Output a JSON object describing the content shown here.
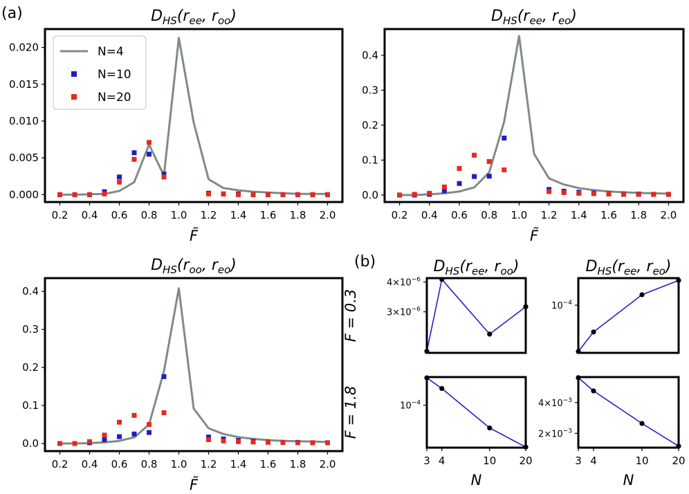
{
  "figure": {
    "panel_a_label": "(a)",
    "panel_b_label": "(b)"
  },
  "chart_data": [
    {
      "type": "line",
      "panel": "a1",
      "title": "D_HS(r_ee, r_oo)",
      "title_parts": {
        "main": "D",
        "sub": "HS",
        "args": "(r",
        "s1": "ee",
        "mid": ", r",
        "s2": "oo",
        "end": ")"
      },
      "xlabel": "F̃",
      "ylabel": "",
      "xlim": [
        0.1,
        2.1
      ],
      "ylim": [
        -0.001,
        0.0225
      ],
      "xticks": [
        0.2,
        0.4,
        0.6,
        0.8,
        1.0,
        1.2,
        1.4,
        1.6,
        1.8,
        2.0
      ],
      "xtick_labels": [
        "0.2",
        "0.4",
        "0.6",
        "0.8",
        "1.0",
        "1.2",
        "1.4",
        "1.6",
        "1.8",
        "2.0"
      ],
      "yticks": [
        0,
        0.005,
        0.01,
        0.015,
        0.02
      ],
      "ytick_labels": [
        "0.000",
        "0.005",
        "0.010",
        "0.015",
        "0.020"
      ],
      "legend": {
        "position": "top-left",
        "entries": [
          "N=4",
          "N=10",
          "N=20"
        ]
      },
      "series": [
        {
          "name": "N=4",
          "kind": "line",
          "color": "#808a87",
          "x": [
            0.2,
            0.3,
            0.4,
            0.5,
            0.6,
            0.7,
            0.8,
            0.9,
            1.0,
            1.1,
            1.2,
            1.3,
            1.4,
            1.5,
            1.6,
            1.7,
            1.8,
            1.9,
            2.0
          ],
          "y": [
            0,
            0,
            5e-05,
            0.0001,
            0.0005,
            0.0017,
            0.0068,
            0.0026,
            0.0213,
            0.0098,
            0.0021,
            0.0009,
            0.0006,
            0.0004,
            0.0003,
            0.0002,
            0.0001,
            0.0001,
            0.0001
          ]
        },
        {
          "name": "N=10",
          "kind": "scatter",
          "color": "#1f1fbf",
          "x": [
            0.2,
            0.3,
            0.4,
            0.5,
            0.6,
            0.7,
            0.8,
            0.9,
            1.2,
            1.3,
            1.4,
            1.5,
            1.6,
            1.7,
            1.8,
            1.9,
            2.0
          ],
          "y": [
            0,
            0,
            0,
            0.0004,
            0.0024,
            0.0057,
            0.0055,
            0.0028,
            0.0002,
            0.0001,
            0.0001,
            0,
            0,
            0,
            0,
            0,
            0
          ]
        },
        {
          "name": "N=20",
          "kind": "scatter",
          "color": "#e8281e",
          "x": [
            0.2,
            0.3,
            0.4,
            0.5,
            0.6,
            0.7,
            0.8,
            0.9,
            1.2,
            1.3,
            1.4,
            1.5,
            1.6,
            1.7,
            1.8,
            1.9,
            2.0
          ],
          "y": [
            0,
            0,
            0,
            0.0001,
            0.0017,
            0.0048,
            0.0071,
            0.0024,
            0.0001,
            0.0001,
            0,
            0,
            0,
            0,
            0,
            0,
            0
          ]
        }
      ]
    },
    {
      "type": "line",
      "panel": "a2",
      "title": "D_HS(r_ee, r_eo)",
      "title_parts": {
        "main": "D",
        "sub": "HS",
        "args": "(r",
        "s1": "ee",
        "mid": ", r",
        "s2": "eo",
        "end": ")"
      },
      "xlabel": "F̃",
      "ylabel": "",
      "xlim": [
        0.1,
        2.1
      ],
      "ylim": [
        -0.02,
        0.475
      ],
      "xticks": [
        0.2,
        0.4,
        0.6,
        0.8,
        1.0,
        1.2,
        1.4,
        1.6,
        1.8,
        2.0
      ],
      "xtick_labels": [
        "0.2",
        "0.4",
        "0.6",
        "0.8",
        "1.0",
        "1.2",
        "1.4",
        "1.6",
        "1.8",
        "2.0"
      ],
      "yticks": [
        0,
        0.1,
        0.2,
        0.3,
        0.4
      ],
      "ytick_labels": [
        "0.0",
        "0.1",
        "0.2",
        "0.3",
        "0.4"
      ],
      "series": [
        {
          "name": "N=4",
          "kind": "line",
          "color": "#808a87",
          "x": [
            0.2,
            0.3,
            0.4,
            0.5,
            0.6,
            0.7,
            0.8,
            0.9,
            1.0,
            1.1,
            1.2,
            1.3,
            1.4,
            1.5,
            1.6,
            1.7,
            1.8,
            1.9,
            2.0
          ],
          "y": [
            0,
            0,
            0.002,
            0.005,
            0.01,
            0.022,
            0.065,
            0.21,
            0.455,
            0.118,
            0.048,
            0.03,
            0.02,
            0.014,
            0.01,
            0.008,
            0.006,
            0.005,
            0.004
          ]
        },
        {
          "name": "N=10",
          "kind": "scatter",
          "color": "#1f1fbf",
          "x": [
            0.2,
            0.3,
            0.4,
            0.5,
            0.6,
            0.7,
            0.8,
            0.9,
            1.2,
            1.3,
            1.4,
            1.5,
            1.6,
            1.7,
            1.8,
            1.9,
            2.0
          ],
          "y": [
            0,
            0,
            0.002,
            0.012,
            0.033,
            0.053,
            0.054,
            0.163,
            0.016,
            0.011,
            0.008,
            0.006,
            0.004,
            0.003,
            0.003,
            0.002,
            0.002
          ]
        },
        {
          "name": "N=20",
          "kind": "scatter",
          "color": "#e8281e",
          "x": [
            0.2,
            0.3,
            0.4,
            0.5,
            0.6,
            0.7,
            0.8,
            0.9,
            1.2,
            1.3,
            1.4,
            1.5,
            1.6,
            1.7,
            1.8,
            1.9,
            2.0
          ],
          "y": [
            0,
            0.002,
            0.005,
            0.023,
            0.076,
            0.114,
            0.096,
            0.072,
            0.01,
            0.007,
            0.005,
            0.004,
            0.003,
            0.002,
            0.002,
            0.002,
            0.002
          ]
        }
      ]
    },
    {
      "type": "line",
      "panel": "a3",
      "title": "D_HS(r_oo, r_eo)",
      "title_parts": {
        "main": "D",
        "sub": "HS",
        "args": "(r",
        "s1": "oo",
        "mid": ", r",
        "s2": "eo",
        "end": ")"
      },
      "xlabel": "F̃",
      "ylabel": "",
      "xlim": [
        0.1,
        2.1
      ],
      "ylim": [
        -0.02,
        0.435
      ],
      "xticks": [
        0.2,
        0.4,
        0.6,
        0.8,
        1.0,
        1.2,
        1.4,
        1.6,
        1.8,
        2.0
      ],
      "xtick_labels": [
        "0.2",
        "0.4",
        "0.6",
        "0.8",
        "1.0",
        "1.2",
        "1.4",
        "1.6",
        "1.8",
        "2.0"
      ],
      "yticks": [
        0,
        0.1,
        0.2,
        0.3,
        0.4
      ],
      "ytick_labels": [
        "0.0",
        "0.1",
        "0.2",
        "0.3",
        "0.4"
      ],
      "series": [
        {
          "name": "N=4",
          "kind": "line",
          "color": "#808a87",
          "x": [
            0.2,
            0.3,
            0.4,
            0.5,
            0.6,
            0.7,
            0.8,
            0.9,
            1.0,
            1.1,
            1.2,
            1.3,
            1.4,
            1.5,
            1.6,
            1.7,
            1.8,
            1.9,
            2.0
          ],
          "y": [
            0,
            0,
            0.001,
            0.003,
            0.007,
            0.016,
            0.05,
            0.19,
            0.408,
            0.092,
            0.04,
            0.025,
            0.017,
            0.012,
            0.009,
            0.007,
            0.006,
            0.005,
            0.004
          ]
        },
        {
          "name": "N=10",
          "kind": "scatter",
          "color": "#1f1fbf",
          "x": [
            0.2,
            0.3,
            0.4,
            0.5,
            0.6,
            0.7,
            0.8,
            0.9,
            1.2,
            1.3,
            1.4,
            1.5,
            1.6,
            1.7,
            1.8,
            1.9,
            2.0
          ],
          "y": [
            0,
            0,
            0.002,
            0.01,
            0.018,
            0.025,
            0.029,
            0.176,
            0.017,
            0.012,
            0.008,
            0.006,
            0.004,
            0.003,
            0.003,
            0.002,
            0.002
          ]
        },
        {
          "name": "N=20",
          "kind": "scatter",
          "color": "#e8281e",
          "x": [
            0.2,
            0.3,
            0.4,
            0.5,
            0.6,
            0.7,
            0.8,
            0.9,
            1.2,
            1.3,
            1.4,
            1.5,
            1.6,
            1.7,
            1.8,
            1.9,
            2.0
          ],
          "y": [
            0,
            0,
            0.005,
            0.022,
            0.056,
            0.074,
            0.05,
            0.081,
            0.01,
            0.007,
            0.005,
            0.004,
            0.003,
            0.003,
            0.002,
            0.002,
            0.002
          ]
        }
      ]
    },
    {
      "type": "line",
      "panel": "b11",
      "title": "D_HS(r_ee, r_oo)",
      "title_parts": {
        "main": "D",
        "sub": "HS",
        "args": "(r",
        "s1": "ee",
        "mid": ", r",
        "s2": "oo",
        "end": ")"
      },
      "row_label": "F̃ = 0.3",
      "xscale": "log",
      "yscale": "log",
      "xlim": [
        3,
        20
      ],
      "ylim": [
        2.02e-06,
        4.15e-06
      ],
      "yticks": [
        3e-06,
        4e-06
      ],
      "ytick_labels": [
        {
          "m": "3×10",
          "e": "−6"
        },
        {
          "m": "4×10",
          "e": "−6"
        }
      ],
      "series": [
        {
          "name": "F=0.3",
          "color": "#1f1fcf",
          "x": [
            3,
            4,
            10,
            20
          ],
          "y": [
            2.05e-06,
            4.1e-06,
            2.42e-06,
            3.15e-06
          ]
        }
      ]
    },
    {
      "type": "line",
      "panel": "b12",
      "title": "D_HS(r_ee, r_eo)",
      "title_parts": {
        "main": "D",
        "sub": "HS",
        "args": "(r",
        "s1": "ee",
        "mid": ", r",
        "s2": "eo",
        "end": ")"
      },
      "xscale": "log",
      "yscale": "log",
      "xlim": [
        3,
        20
      ],
      "ylim": [
        4.9e-05,
        0.00015
      ],
      "yticks": [
        0.0001
      ],
      "ytick_labels": [
        {
          "m": "10",
          "e": "−4"
        }
      ],
      "series": [
        {
          "name": "F=0.3",
          "color": "#1f1fcf",
          "x": [
            3,
            4,
            10,
            20
          ],
          "y": [
            5e-05,
            6.7e-05,
            0.000117,
            0.000145
          ]
        }
      ]
    },
    {
      "type": "line",
      "panel": "b21",
      "row_label": "F̃ = 1.8",
      "xscale": "log",
      "yscale": "log",
      "xlim": [
        3,
        20
      ],
      "ylim": [
        2.95e-05,
        0.000225
      ],
      "xticks": [
        3,
        4,
        10,
        20
      ],
      "xtick_labels": [
        "3",
        "4",
        "10",
        "20"
      ],
      "xlabel": "N",
      "yticks": [
        0.0001
      ],
      "ytick_labels": [
        {
          "m": "10",
          "e": "−4"
        }
      ],
      "series": [
        {
          "name": "F=1.8",
          "color": "#1f1fcf",
          "x": [
            3,
            4,
            10,
            20
          ],
          "y": [
            0.00022,
            0.000162,
            5.2e-05,
            3e-05
          ]
        }
      ]
    },
    {
      "type": "line",
      "panel": "b22",
      "xscale": "log",
      "yscale": "log",
      "xlim": [
        3,
        20
      ],
      "ylim": [
        0.00145,
        0.0071
      ],
      "xticks": [
        3,
        4,
        10,
        20
      ],
      "xtick_labels": [
        "3",
        "4",
        "10",
        "20"
      ],
      "xlabel": "N",
      "yticks": [
        0.002,
        0.004
      ],
      "ytick_labels": [
        {
          "m": "2×10",
          "e": "−3"
        },
        {
          "m": "4×10",
          "e": "−3"
        }
      ],
      "series": [
        {
          "name": "F=1.8",
          "color": "#1f1fcf",
          "x": [
            3,
            4,
            10,
            20
          ],
          "y": [
            0.007,
            0.0052,
            0.0025,
            0.0015
          ]
        }
      ]
    }
  ]
}
